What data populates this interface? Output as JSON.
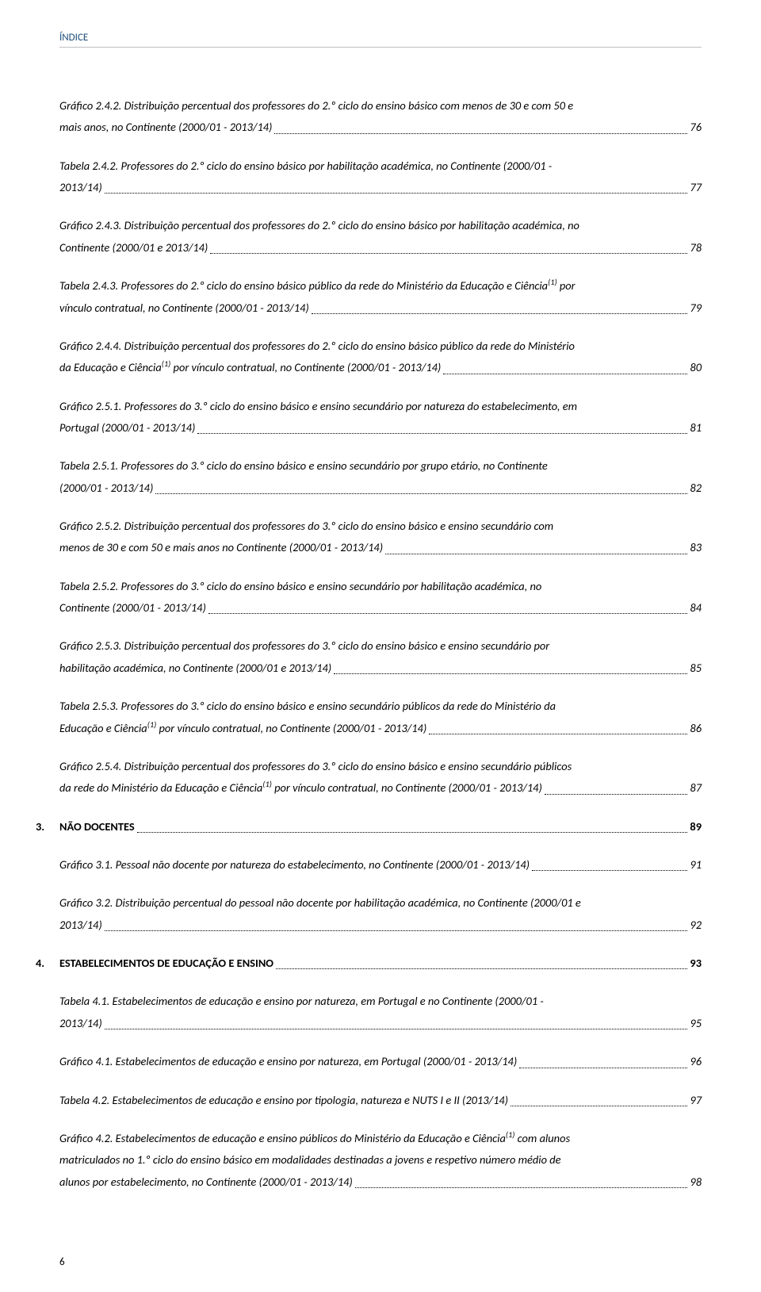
{
  "header": "ÍNDICE",
  "footer": "6",
  "entries": [
    {
      "kind": "multi",
      "lines": [
        "Gráfico 2.4.2. Distribuição percentual dos professores do 2.º ciclo do ensino básico com menos de 30 e com 50 e"
      ],
      "last": "mais anos, no Continente (2000/01 - 2013/14)",
      "page": "76"
    },
    {
      "kind": "multi",
      "lines": [
        "Tabela 2.4.2. Professores do 2.º ciclo do ensino básico por habilitação académica, no Continente (2000/01 -"
      ],
      "last": "2013/14)",
      "page": "77"
    },
    {
      "kind": "multi",
      "lines": [
        "Gráfico 2.4.3. Distribuição percentual dos professores do 2.º ciclo do ensino básico por habilitação académica, no"
      ],
      "last": "Continente (2000/01 e 2013/14)",
      "page": "78"
    },
    {
      "kind": "multi",
      "lines": [
        "Tabela 2.4.3. Professores do 2.º ciclo do ensino básico público da rede do Ministério da Educação e Ciência<sup>(1)</sup> por"
      ],
      "last": "vínculo contratual, no Continente (2000/01 - 2013/14)",
      "page": "79"
    },
    {
      "kind": "multi",
      "lines": [
        "Gráfico 2.4.4. Distribuição percentual dos professores do 2.º ciclo do ensino básico público da rede do Ministério"
      ],
      "last": "da Educação e Ciência<sup>(1)</sup> por vínculo contratual, no Continente (2000/01 - 2013/14)",
      "page": "80"
    },
    {
      "kind": "multi",
      "lines": [
        "Gráfico 2.5.1. Professores do 3.º ciclo do ensino básico e ensino secundário por natureza do estabelecimento, em"
      ],
      "last": "Portugal (2000/01 - 2013/14)",
      "page": "81"
    },
    {
      "kind": "multi",
      "lines": [
        "Tabela 2.5.1. Professores do  3.º ciclo do ensino básico e ensino secundário por grupo etário, no Continente"
      ],
      "last": "(2000/01 - 2013/14)",
      "page": "82"
    },
    {
      "kind": "multi",
      "lines": [
        "Gráfico 2.5.2. Distribuição percentual dos professores do 3.º ciclo do ensino básico e ensino secundário com"
      ],
      "last": "menos de 30 e com 50 e mais anos no Continente (2000/01 - 2013/14)",
      "page": "83"
    },
    {
      "kind": "multi",
      "lines": [
        "Tabela 2.5.2. Professores do 3.º ciclo do ensino básico e ensino secundário por habilitação académica, no"
      ],
      "last": "Continente (2000/01 - 2013/14)",
      "page": "84"
    },
    {
      "kind": "multi",
      "lines": [
        "Gráfico 2.5.3. Distribuição percentual dos professores do 3.º ciclo do ensino básico e ensino secundário por"
      ],
      "last": "habilitação académica, no Continente (2000/01 e 2013/14)",
      "page": "85"
    },
    {
      "kind": "multi",
      "lines": [
        "Tabela 2.5.3. Professores do 3.º ciclo do ensino básico e ensino secundário públicos da rede do Ministério da"
      ],
      "last": "Educação e Ciência<sup>(1)</sup> por vínculo contratual, no Continente (2000/01 - 2013/14)",
      "page": "86"
    },
    {
      "kind": "multi",
      "lines": [
        "Gráfico 2.5.4. Distribuição percentual dos professores do  3.º ciclo do ensino básico e ensino secundário públicos"
      ],
      "last": "da rede do Ministério da Educação e Ciência<sup>(1)</sup> por vínculo contratual, no Continente (2000/01 - 2013/14)",
      "page": "87"
    },
    {
      "kind": "section",
      "num": "3.",
      "text": "NÃO DOCENTES",
      "page": "89"
    },
    {
      "kind": "single",
      "text": "Gráfico 3.1. Pessoal não docente por natureza do estabelecimento, no Continente (2000/01 - 2013/14)",
      "page": "91"
    },
    {
      "kind": "multi",
      "lines": [
        "Gráfico 3.2. Distribuição percentual do pessoal não docente por habilitação académica, no Continente (2000/01 e"
      ],
      "last": "2013/14)",
      "page": "92"
    },
    {
      "kind": "section",
      "num": "4.",
      "text": "ESTABELECIMENTOS DE EDUCAÇÃO E ENSINO",
      "page": "93"
    },
    {
      "kind": "multi",
      "lines": [
        "Tabela 4.1. Estabelecimentos de educação e ensino por natureza, em Portugal e no Continente (2000/01 -"
      ],
      "last": "2013/14)",
      "page": "95"
    },
    {
      "kind": "single",
      "text": "Gráfico 4.1. Estabelecimentos de educação e ensino por natureza, em Portugal (2000/01 - 2013/14)",
      "page": "96"
    },
    {
      "kind": "single",
      "text": "Tabela 4.2. Estabelecimentos de educação e ensino por tipologia, natureza e NUTS I e II (2013/14)",
      "page": "97"
    },
    {
      "kind": "multi",
      "lines": [
        "Gráfico 4.2. Estabelecimentos de educação e ensino públicos do Ministério da Educação e Ciência<sup>(1)</sup> com alunos",
        "matriculados no 1.º ciclo do ensino básico em modalidades destinadas a jovens e respetivo número médio de"
      ],
      "last": "alunos por estabelecimento, no Continente (2000/01 - 2013/14)",
      "page": "98"
    }
  ]
}
